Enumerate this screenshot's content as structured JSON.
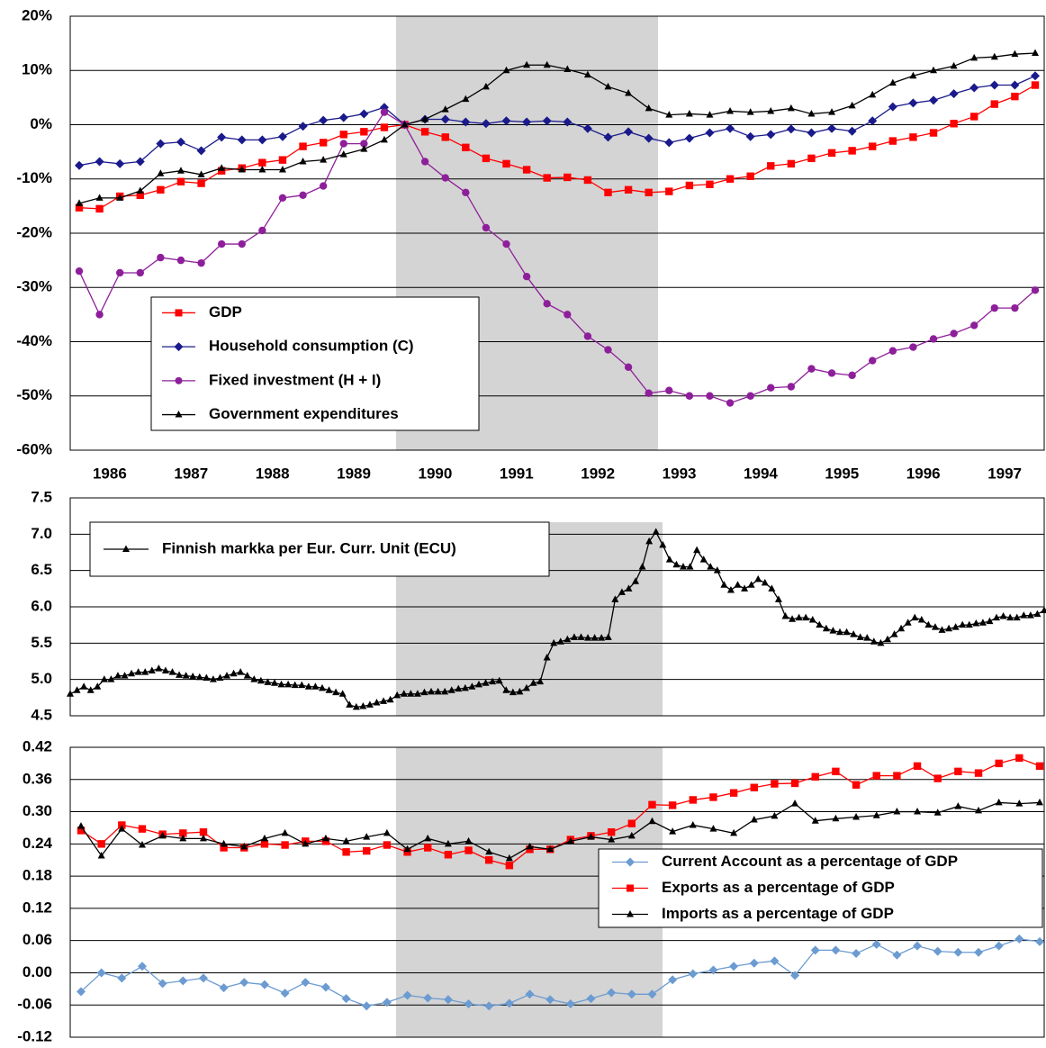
{
  "chart_data": [
    {
      "type": "line",
      "categories": [
        "1986",
        null,
        null,
        null,
        "1987",
        null,
        null,
        null,
        "1988",
        null,
        null,
        null,
        "1989",
        null,
        null,
        null,
        "1990",
        null,
        null,
        null,
        "1991",
        null,
        null,
        null,
        "1992",
        null,
        null,
        null,
        "1993",
        null,
        null,
        null,
        "1994",
        null,
        null,
        null,
        "1995",
        null,
        null,
        null,
        "1996",
        null,
        null,
        null,
        "1997",
        null,
        null,
        null
      ],
      "series": [
        {
          "name": "GDP",
          "color": "#ff0000",
          "marker": "square",
          "values": [
            -15.3,
            -15.5,
            -13.2,
            -13,
            -12,
            -10.5,
            -10.8,
            -8.5,
            -8,
            -7,
            -6.5,
            -4,
            -3.3,
            -1.8,
            -1.3,
            -0.5,
            0,
            -1.3,
            -2.3,
            -4.2,
            -6.2,
            -7.2,
            -8.3,
            -9.8,
            -9.7,
            -10.2,
            -12.5,
            -12,
            -12.5,
            -12.3,
            -11.2,
            -11,
            -10,
            -9.5,
            -7.6,
            -7.2,
            -6.2,
            -5.2,
            -4.8,
            -4,
            -3,
            -2.3,
            -1.5,
            0.2,
            1.5,
            3.8,
            5.2,
            7.3
          ]
        },
        {
          "name": "Household consumption (C)",
          "color": "#1a1a8c",
          "marker": "diamond",
          "values": [
            -7.5,
            -6.8,
            -7.2,
            -6.8,
            -3.5,
            -3.2,
            -4.8,
            -2.3,
            -2.8,
            -2.8,
            -2.2,
            -0.3,
            0.8,
            1.3,
            2,
            3.2,
            0,
            1,
            1,
            0.5,
            0.2,
            0.7,
            0.5,
            0.7,
            0.5,
            -0.7,
            -2.3,
            -1.3,
            -2.5,
            -3.3,
            -2.5,
            -1.5,
            -0.7,
            -2.2,
            -1.8,
            -0.8,
            -1.5,
            -0.7,
            -1.2,
            0.7,
            3.3,
            4,
            4.5,
            5.7,
            6.8,
            7.3,
            7.3,
            9
          ]
        },
        {
          "name": "Fixed investment (H + I)",
          "color": "#8e1f9a",
          "marker": "circle",
          "values": [
            -27,
            -35,
            -27.3,
            -27.3,
            -24.5,
            -25,
            -25.5,
            -22,
            -22,
            -19.5,
            -13.5,
            -13,
            -11.3,
            -3.5,
            -3.5,
            2.3,
            0,
            -6.8,
            -9.8,
            -12.5,
            -19,
            -22,
            -28,
            -33,
            -35,
            -39,
            -41.5,
            -44.7,
            -49.5,
            -49,
            -50,
            -50,
            -51.3,
            -50,
            -48.5,
            -48.3,
            -45,
            -45.8,
            -46.2,
            -43.5,
            -41.7,
            -41,
            -39.5,
            -38.5,
            -37,
            -33.8,
            -33.8,
            -30.5
          ]
        },
        {
          "name": "Government expenditures",
          "color": "#000000",
          "marker": "triangle",
          "values": [
            -14.5,
            -13.5,
            -13.5,
            -12.2,
            -9,
            -8.5,
            -9.2,
            -8,
            -8.3,
            -8.3,
            -8.3,
            -6.8,
            -6.5,
            -5.5,
            -4.5,
            -2.8,
            0,
            1,
            2.8,
            4.7,
            7,
            10,
            11,
            11,
            10.2,
            9.2,
            7,
            5.8,
            3,
            1.8,
            2,
            1.8,
            2.5,
            2.3,
            2.5,
            3,
            2,
            2.3,
            3.5,
            5.5,
            7.7,
            9,
            10,
            10.8,
            12.3,
            12.5,
            13,
            13.2
          ]
        }
      ],
      "ylim": [
        -60,
        20
      ],
      "yticks": [
        {
          "value": 20,
          "label": "20%"
        },
        {
          "value": 10,
          "label": "10%"
        },
        {
          "value": 0,
          "label": "0%"
        },
        {
          "value": -10,
          "label": "-10%"
        },
        {
          "value": -20,
          "label": "-20%"
        },
        {
          "value": -30,
          "label": "-30%"
        },
        {
          "value": -40,
          "label": "-40%"
        },
        {
          "value": -50,
          "label": "-50%"
        },
        {
          "value": -60,
          "label": "-60%"
        }
      ],
      "grid": true,
      "legend": "lower-left"
    },
    {
      "type": "line",
      "series": [
        {
          "name": "Finnish markka per Eur. Curr. Unit (ECU)",
          "color": "#000000",
          "marker": "triangle",
          "values": [
            4.8,
            4.85,
            4.9,
            4.85,
            4.9,
            5.0,
            5.0,
            5.05,
            5.05,
            5.08,
            5.1,
            5.1,
            5.12,
            5.15,
            5.12,
            5.1,
            5.06,
            5.05,
            5.04,
            5.03,
            5.02,
            5.0,
            5.02,
            5.05,
            5.08,
            5.1,
            5.05,
            5.0,
            4.98,
            4.96,
            4.95,
            4.93,
            4.93,
            4.92,
            4.92,
            4.9,
            4.9,
            4.88,
            4.85,
            4.82,
            4.8,
            4.65,
            4.62,
            4.63,
            4.65,
            4.68,
            4.7,
            4.72,
            4.78,
            4.8,
            4.8,
            4.8,
            4.82,
            4.83,
            4.83,
            4.83,
            4.85,
            4.87,
            4.88,
            4.9,
            4.93,
            4.95,
            4.97,
            4.98,
            4.85,
            4.82,
            4.83,
            4.88,
            4.95,
            4.97,
            5.3,
            5.5,
            5.52,
            5.55,
            5.58,
            5.58,
            5.57,
            5.57,
            5.57,
            5.58,
            6.1,
            6.2,
            6.25,
            6.35,
            6.55,
            6.9,
            7.03,
            6.85,
            6.65,
            6.58,
            6.55,
            6.55,
            6.78,
            6.65,
            6.55,
            6.5,
            6.3,
            6.23,
            6.3,
            6.25,
            6.3,
            6.38,
            6.33,
            6.25,
            6.1,
            5.87,
            5.83,
            5.85,
            5.85,
            5.82,
            5.75,
            5.7,
            5.67,
            5.65,
            5.65,
            5.62,
            5.58,
            5.57,
            5.52,
            5.5,
            5.55,
            5.62,
            5.7,
            5.78,
            5.85,
            5.82,
            5.75,
            5.72,
            5.68,
            5.7,
            5.72,
            5.75,
            5.75,
            5.77,
            5.78,
            5.8,
            5.85,
            5.87,
            5.85,
            5.85,
            5.88,
            5.88,
            5.9,
            5.95
          ]
        }
      ],
      "ylim": [
        4.5,
        7.5
      ],
      "yticks": [
        7.5,
        {
          "value": 7,
          "label": "7.0"
        },
        6.5,
        {
          "value": 6,
          "label": "6.0"
        },
        5.5,
        {
          "value": 5,
          "label": "5.0"
        },
        4.5
      ],
      "grid": true,
      "legend": "upper-left"
    },
    {
      "type": "line",
      "series": [
        {
          "name": "Current Account as a percentage of GDP",
          "color": "#6b9bd1",
          "marker": "diamond",
          "values": [
            -0.035,
            0,
            -0.01,
            0.012,
            -0.02,
            -0.015,
            -0.01,
            -0.028,
            -0.018,
            -0.022,
            -0.038,
            -0.018,
            -0.027,
            -0.048,
            -0.062,
            -0.055,
            -0.042,
            -0.047,
            -0.05,
            -0.058,
            -0.062,
            -0.057,
            -0.04,
            -0.05,
            -0.058,
            -0.048,
            -0.037,
            -0.04,
            -0.04,
            -0.013,
            -0.002,
            0.005,
            0.012,
            0.018,
            0.022,
            -0.005,
            0.042,
            0.042,
            0.036,
            0.053,
            0.033,
            0.05,
            0.04,
            0.038,
            0.038,
            0.05,
            0.063,
            0.058
          ]
        },
        {
          "name": "Exports as a percentage of GDP",
          "color": "#ff0000",
          "marker": "square",
          "values": [
            0.265,
            0.24,
            0.275,
            0.268,
            0.258,
            0.26,
            0.262,
            0.233,
            0.233,
            0.24,
            0.238,
            0.245,
            0.245,
            0.225,
            0.227,
            0.238,
            0.225,
            0.233,
            0.22,
            0.228,
            0.21,
            0.2,
            0.23,
            0.23,
            0.248,
            0.255,
            0.262,
            0.278,
            0.313,
            0.312,
            0.322,
            0.327,
            0.335,
            0.345,
            0.352,
            0.353,
            0.365,
            0.375,
            0.35,
            0.367,
            0.367,
            0.385,
            0.362,
            0.375,
            0.372,
            0.39,
            0.4,
            0.385
          ]
        },
        {
          "name": "Imports as a percentage of GDP",
          "color": "#000000",
          "marker": "triangle",
          "values": [
            0.273,
            0.218,
            0.268,
            0.238,
            0.255,
            0.25,
            0.25,
            0.24,
            0.235,
            0.25,
            0.26,
            0.24,
            0.25,
            0.245,
            0.253,
            0.26,
            0.23,
            0.25,
            0.24,
            0.245,
            0.225,
            0.213,
            0.235,
            0.23,
            0.245,
            0.253,
            0.248,
            0.255,
            0.282,
            0.263,
            0.275,
            0.268,
            0.26,
            0.285,
            0.292,
            0.315,
            0.283,
            0.287,
            0.29,
            0.293,
            0.3,
            0.3,
            0.298,
            0.31,
            0.302,
            0.317,
            0.315,
            0.317
          ]
        }
      ],
      "ylim": [
        -0.12,
        0.42
      ],
      "yticks": [
        0.42,
        0.36,
        {
          "value": 0.3,
          "label": "0.30"
        },
        0.24,
        0.18,
        0.12,
        0.06,
        {
          "value": 0,
          "label": "0.00"
        },
        -0.06,
        -0.12
      ],
      "grid": true,
      "legend": "right"
    }
  ]
}
